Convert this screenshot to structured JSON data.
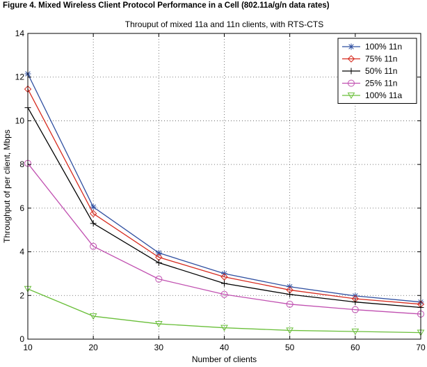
{
  "figure_caption": "Figure 4. Mixed Wireless Client Protocol Performance in a Cell (802.11a/g/n data rates)",
  "chart_data": {
    "type": "line",
    "title": "Throuput of mixed 11a and 11n clients, with RTS-CTS",
    "xlabel": "Number of clients",
    "ylabel": "Throughput of per client, Mbps",
    "xlim": [
      10,
      70
    ],
    "ylim": [
      0,
      14
    ],
    "x_ticks": [
      10,
      20,
      30,
      40,
      50,
      60,
      70
    ],
    "y_ticks": [
      0,
      2,
      4,
      6,
      8,
      10,
      12,
      14
    ],
    "grid": "dotted",
    "legend_position": "top-right",
    "x": [
      10,
      20,
      30,
      40,
      50,
      60,
      70
    ],
    "series": [
      {
        "name": "100% 11n",
        "color": "#2f4fa0",
        "marker": "star",
        "values": [
          12.15,
          6.05,
          3.95,
          3.0,
          2.4,
          1.98,
          1.7
        ]
      },
      {
        "name": "75% 11n",
        "color": "#d62a1e",
        "marker": "diamond",
        "values": [
          11.45,
          5.75,
          3.75,
          2.85,
          2.25,
          1.85,
          1.6
        ]
      },
      {
        "name": "50% 11n",
        "color": "#000000",
        "marker": "plus",
        "values": [
          10.6,
          5.3,
          3.5,
          2.55,
          2.05,
          1.7,
          1.45
        ]
      },
      {
        "name": "25% 11n",
        "color": "#c04fb0",
        "marker": "circle",
        "values": [
          8.05,
          4.25,
          2.75,
          2.05,
          1.6,
          1.35,
          1.15
        ]
      },
      {
        "name": "100% 11a",
        "color": "#6abf3a",
        "marker": "triangle-down",
        "values": [
          2.3,
          1.05,
          0.7,
          0.52,
          0.4,
          0.35,
          0.3
        ]
      }
    ]
  }
}
